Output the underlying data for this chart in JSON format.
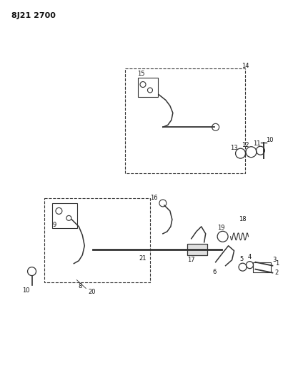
{
  "title": "8J21 2700",
  "bg_color": "#ffffff",
  "line_color": "#333333",
  "text_color": "#111111",
  "fig_w": 4.03,
  "fig_h": 5.33,
  "dpi": 100,
  "xlim": [
    0,
    403
  ],
  "ylim": [
    0,
    533
  ]
}
